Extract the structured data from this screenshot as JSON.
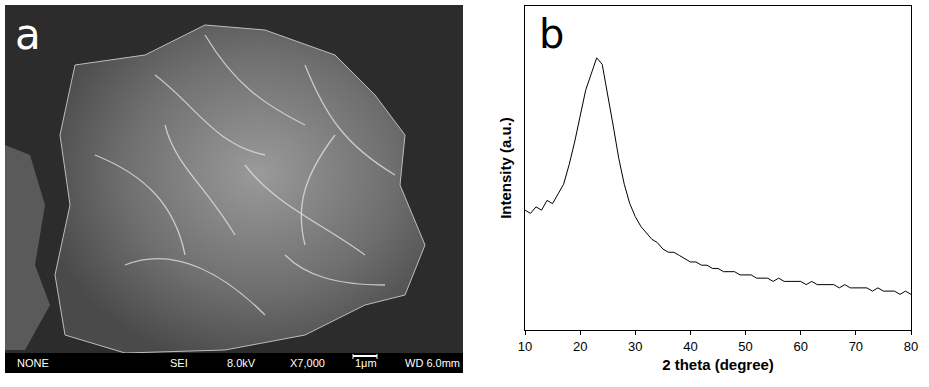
{
  "panel_a": {
    "label": "a",
    "info_bar": [
      "NONE",
      "SEI",
      "8.0kV",
      "X7,000",
      "1μm",
      "WD 6.0mm"
    ]
  },
  "chart_data": {
    "type": "line",
    "label": "b",
    "x_label": "2 theta (degree)",
    "y_label": "Intensity (a.u.)",
    "x": [
      10,
      11,
      12,
      13,
      14,
      15,
      16,
      17,
      18,
      19,
      20,
      21,
      22,
      23,
      24,
      25,
      26,
      27,
      28,
      29,
      30,
      31,
      32,
      33,
      34,
      35,
      36,
      37,
      38,
      39,
      40,
      41,
      42,
      43,
      44,
      45,
      46,
      47,
      48,
      49,
      50,
      51,
      52,
      53,
      54,
      55,
      56,
      57,
      58,
      59,
      60,
      61,
      62,
      63,
      64,
      65,
      66,
      67,
      68,
      69,
      70,
      71,
      72,
      73,
      74,
      75,
      76,
      77,
      78,
      79,
      80
    ],
    "values": [
      37,
      36,
      38,
      37,
      40,
      39,
      42,
      45,
      51,
      58,
      66,
      74,
      79,
      84,
      82,
      73,
      63,
      53,
      45,
      39,
      35,
      32,
      30,
      28,
      27,
      25,
      24,
      24,
      23,
      22,
      21,
      21,
      20,
      20,
      19,
      19,
      18,
      18,
      18,
      17,
      17,
      17,
      16,
      16,
      16,
      15,
      16,
      15,
      15,
      15,
      15,
      14,
      15,
      14,
      14,
      14,
      14,
      13,
      14,
      13,
      13,
      13,
      13,
      12,
      13,
      12,
      12,
      12,
      11,
      12,
      11
    ],
    "color": "#000000",
    "xlim": [
      10,
      80
    ],
    "xticks": [
      10,
      20,
      30,
      40,
      50,
      60,
      70,
      80
    ],
    "ylim": [
      0,
      100
    ],
    "yticks": [],
    "tick_labels": "x",
    "grid": false
  }
}
